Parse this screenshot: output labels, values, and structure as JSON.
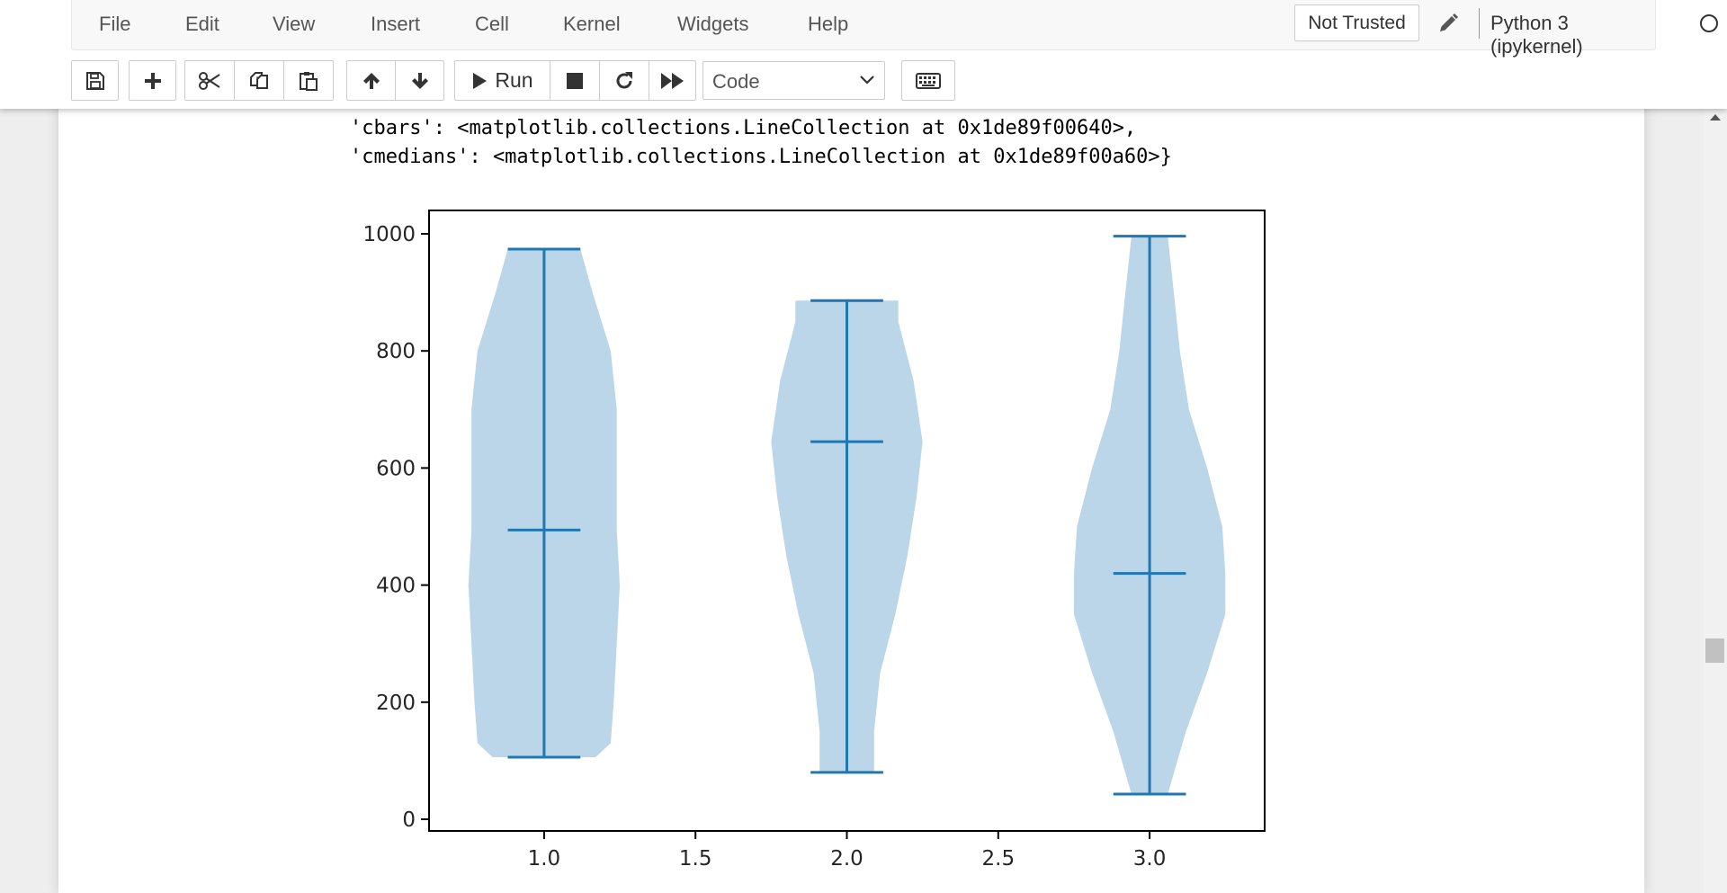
{
  "menu": [
    "File",
    "Edit",
    "View",
    "Insert",
    "Cell",
    "Kernel",
    "Widgets",
    "Help"
  ],
  "header": {
    "trust_label": "Not Trusted",
    "kernel_name": "Python 3 (ipykernel)"
  },
  "toolbar": {
    "run_label": "Run",
    "cell_type": "Code"
  },
  "output": {
    "line1": "'cbars': <matplotlib.collections.LineCollection at 0x1de89f00640>,",
    "line2": "'cmedians': <matplotlib.collections.LineCollection at 0x1de89f00a60>}"
  },
  "colors": {
    "violin_body": "#1f77b4",
    "violin_body_alpha": 0.3,
    "lines": "#1f77b4"
  },
  "chart_data": {
    "type": "violin",
    "title": "",
    "xlabel": "",
    "ylabel": "",
    "xlim": [
      0.62,
      3.38
    ],
    "ylim": [
      -20,
      1040
    ],
    "x_ticks": [
      1.0,
      1.5,
      2.0,
      2.5,
      3.0
    ],
    "x_tick_labels": [
      "1.0",
      "1.5",
      "2.0",
      "2.5",
      "3.0"
    ],
    "y_ticks": [
      0,
      200,
      400,
      600,
      800,
      1000
    ],
    "y_tick_labels": [
      "0",
      "200",
      "400",
      "600",
      "800",
      "1000"
    ],
    "grid": false,
    "violins": [
      {
        "position": 1.0,
        "min": 106,
        "max": 974,
        "median": 494,
        "profile": [
          [
            106,
            0.17
          ],
          [
            130,
            0.22
          ],
          [
            200,
            0.23
          ],
          [
            300,
            0.24
          ],
          [
            400,
            0.25
          ],
          [
            494,
            0.24
          ],
          [
            600,
            0.24
          ],
          [
            700,
            0.24
          ],
          [
            800,
            0.22
          ],
          [
            900,
            0.16
          ],
          [
            974,
            0.12
          ]
        ]
      },
      {
        "position": 2.0,
        "min": 80,
        "max": 886,
        "median": 645,
        "profile": [
          [
            80,
            0.09
          ],
          [
            150,
            0.09
          ],
          [
            250,
            0.11
          ],
          [
            350,
            0.16
          ],
          [
            450,
            0.2
          ],
          [
            550,
            0.23
          ],
          [
            645,
            0.25
          ],
          [
            750,
            0.22
          ],
          [
            850,
            0.17
          ],
          [
            886,
            0.17
          ]
        ]
      },
      {
        "position": 3.0,
        "min": 43,
        "max": 996,
        "median": 420,
        "profile": [
          [
            43,
            0.06
          ],
          [
            150,
            0.12
          ],
          [
            250,
            0.19
          ],
          [
            350,
            0.25
          ],
          [
            420,
            0.25
          ],
          [
            500,
            0.24
          ],
          [
            600,
            0.19
          ],
          [
            700,
            0.13
          ],
          [
            800,
            0.1
          ],
          [
            900,
            0.08
          ],
          [
            996,
            0.06
          ]
        ]
      }
    ]
  }
}
